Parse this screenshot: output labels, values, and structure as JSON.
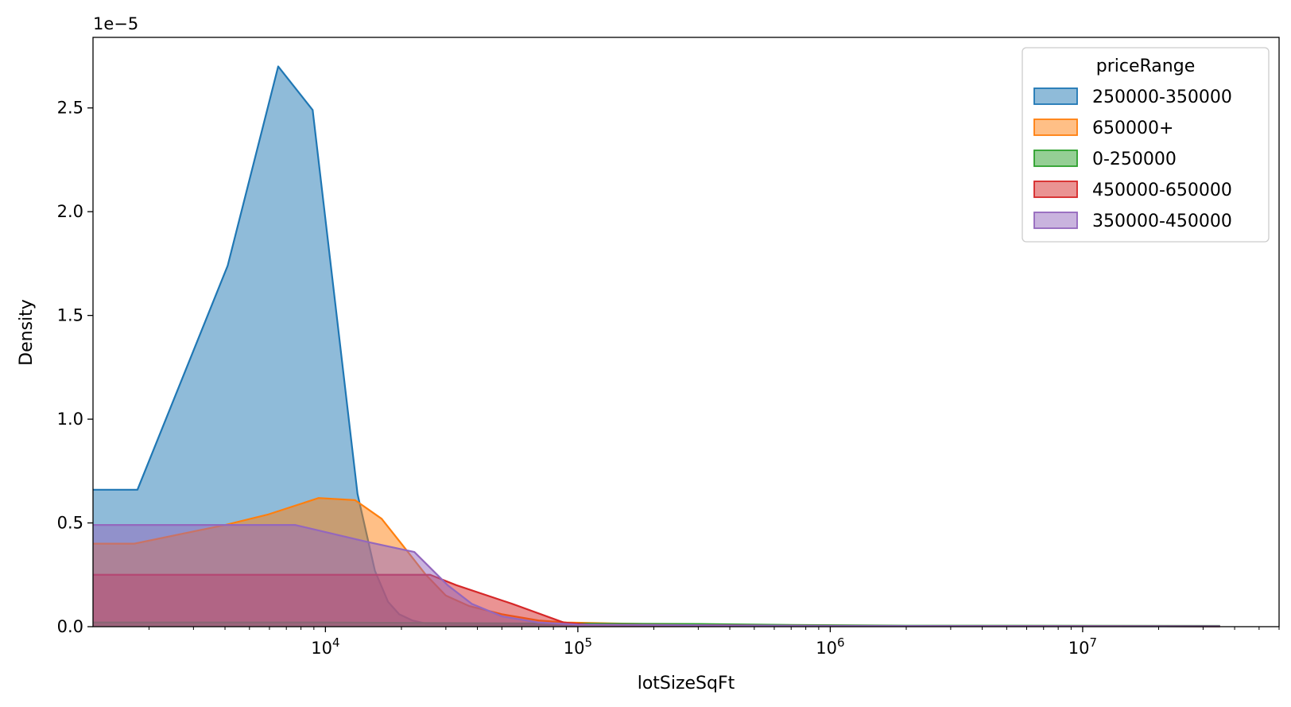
{
  "chart_data": {
    "type": "area",
    "title": "",
    "xlabel": "lotSizeSqFt",
    "ylabel": "Density",
    "x_scale": "log",
    "xlim": [
      1200,
      60000000
    ],
    "ylim": [
      0,
      2.84
    ],
    "y_offset_label": "1e−5",
    "y_ticks": [
      0.0,
      0.5,
      1.0,
      1.5,
      2.0,
      2.5
    ],
    "y_tick_labels": [
      "0.0",
      "0.5",
      "1.0",
      "1.5",
      "2.0",
      "2.5"
    ],
    "x_ticks": [
      {
        "value": 10000,
        "base": "10",
        "exp": "4"
      },
      {
        "value": 100000,
        "base": "10",
        "exp": "5"
      },
      {
        "value": 1000000,
        "base": "10",
        "exp": "6"
      },
      {
        "value": 10000000,
        "base": "10",
        "exp": "7"
      }
    ],
    "grid": false,
    "legend": {
      "title": "priceRange",
      "placement": "top-right"
    },
    "series": [
      {
        "name": "250000-350000",
        "color": "#1f77b4",
        "points": [
          [
            1200,
            0.66
          ],
          [
            1800,
            0.66
          ],
          [
            4100,
            1.74
          ],
          [
            6500,
            2.7
          ],
          [
            8900,
            2.49
          ],
          [
            13400,
            0.64
          ],
          [
            15700,
            0.27
          ],
          [
            17700,
            0.12
          ],
          [
            19600,
            0.06
          ],
          [
            22100,
            0.03
          ],
          [
            25000,
            0.015
          ],
          [
            40000,
            0.01
          ],
          [
            100000,
            0.008
          ],
          [
            1000000,
            0.003
          ],
          [
            35000000,
            0.002
          ]
        ]
      },
      {
        "name": "650000+",
        "color": "#ff7f0e",
        "points": [
          [
            1200,
            0.4
          ],
          [
            1750,
            0.4
          ],
          [
            4000,
            0.49
          ],
          [
            5900,
            0.54
          ],
          [
            9400,
            0.62
          ],
          [
            13100,
            0.61
          ],
          [
            16700,
            0.52
          ],
          [
            20600,
            0.38
          ],
          [
            25000,
            0.25
          ],
          [
            30000,
            0.15
          ],
          [
            37000,
            0.1
          ],
          [
            50000,
            0.06
          ],
          [
            70000,
            0.03
          ],
          [
            90000,
            0.02
          ],
          [
            200000,
            0.012
          ],
          [
            1000000,
            0.004
          ],
          [
            35000000,
            0.002
          ]
        ]
      },
      {
        "name": "0-250000",
        "color": "#2ca02c",
        "points": [
          [
            1200,
            0.02
          ],
          [
            10000,
            0.02
          ],
          [
            100000,
            0.015
          ],
          [
            300000,
            0.013
          ],
          [
            700000,
            0.008
          ],
          [
            2000000,
            0.005
          ],
          [
            35000000,
            0.004
          ]
        ]
      },
      {
        "name": "450000-650000",
        "color": "#d62728",
        "points": [
          [
            1200,
            0.25
          ],
          [
            26000,
            0.25
          ],
          [
            33000,
            0.2
          ],
          [
            55000,
            0.11
          ],
          [
            88000,
            0.02
          ],
          [
            110000,
            0.01
          ],
          [
            1000000,
            0.004
          ],
          [
            35000000,
            0.002
          ]
        ]
      },
      {
        "name": "350000-450000",
        "color": "#9467bd",
        "points": [
          [
            1200,
            0.49
          ],
          [
            7600,
            0.49
          ],
          [
            14500,
            0.41
          ],
          [
            22500,
            0.36
          ],
          [
            30500,
            0.2
          ],
          [
            38000,
            0.11
          ],
          [
            50000,
            0.05
          ],
          [
            70000,
            0.02
          ],
          [
            100000,
            0.01
          ],
          [
            1000000,
            0.004
          ],
          [
            35000000,
            0.002
          ]
        ]
      }
    ]
  }
}
